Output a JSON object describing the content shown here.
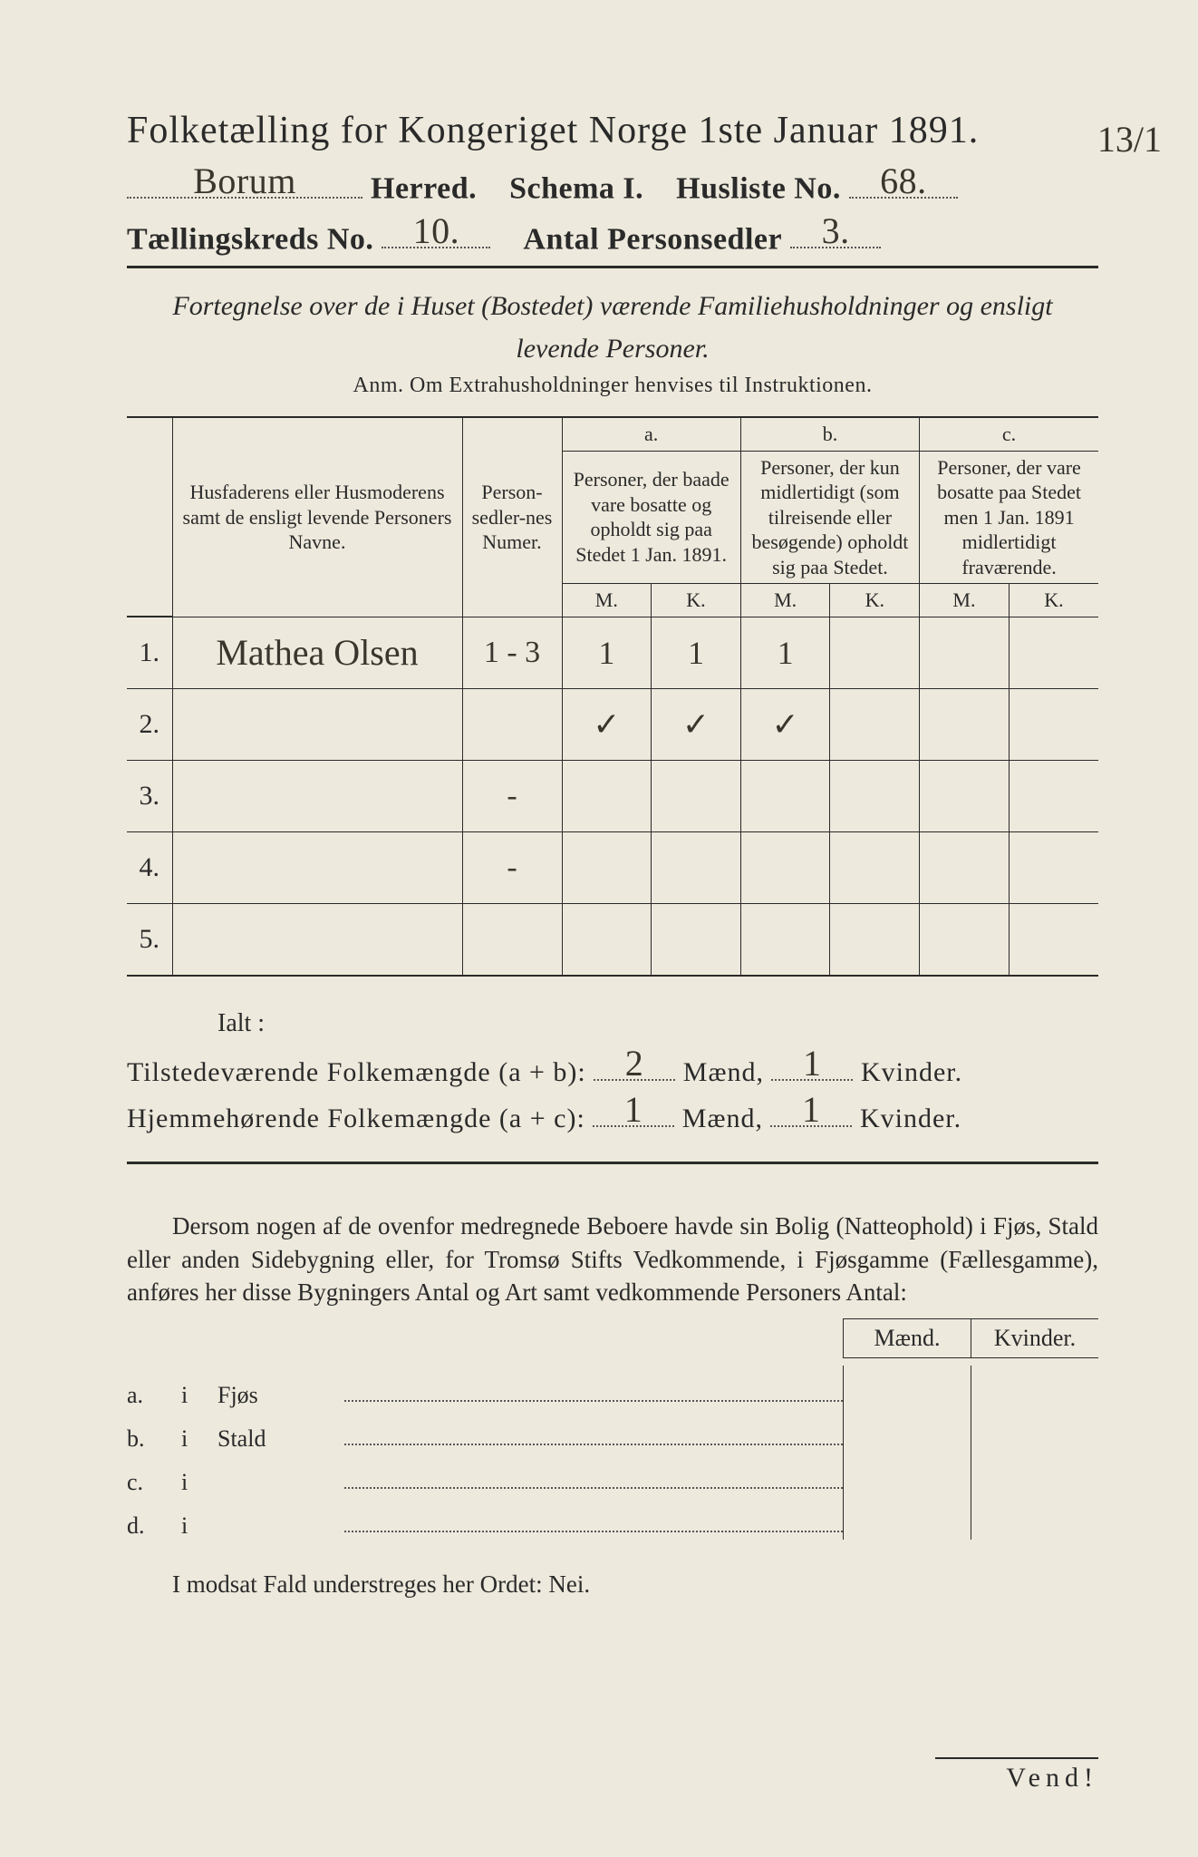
{
  "header": {
    "title": "Folketælling for Kongeriget Norge 1ste Januar 1891.",
    "herred_value": "Borum",
    "herred_label": "Herred.",
    "schema_label": "Schema I.",
    "husliste_label": "Husliste No.",
    "husliste_value": "68.",
    "kreds_label": "Tællingskreds No.",
    "kreds_value": "10.",
    "antal_label": "Antal Personsedler",
    "antal_value": "3.",
    "margin_note": "13/1"
  },
  "description": {
    "line1": "Fortegnelse over de i Huset (Bostedet) værende Familiehusholdninger og ensligt",
    "line2": "levende Personer.",
    "anm": "Anm.  Om Extrahusholdninger henvises til Instruktionen."
  },
  "table": {
    "col_name": "Husfaderens eller Husmoderens samt de ensligt levende Personers Navne.",
    "col_ps": "Person-sedler-nes Numer.",
    "col_a_label": "a.",
    "col_a_text": "Personer, der baade vare bosatte og opholdt sig paa Stedet 1 Jan. 1891.",
    "col_b_label": "b.",
    "col_b_text": "Personer, der kun midlertidigt (som tilreisende eller besøgende) opholdt sig paa Stedet.",
    "col_c_label": "c.",
    "col_c_text": "Personer, der vare bosatte paa Stedet men 1 Jan. 1891 midlertidigt fraværende.",
    "M": "M.",
    "K": "K.",
    "rows": [
      {
        "n": "1.",
        "name": "Mathea Olsen",
        "ps": "1 - 3",
        "aM": "1",
        "aK": "1",
        "bM": "1",
        "bK": "",
        "cM": "",
        "cK": ""
      },
      {
        "n": "2.",
        "name": "",
        "ps": "",
        "aM": "✓",
        "aK": "✓",
        "bM": "✓",
        "bK": "",
        "cM": "",
        "cK": ""
      },
      {
        "n": "3.",
        "name": "",
        "ps": "-",
        "aM": "",
        "aK": "",
        "bM": "",
        "bK": "",
        "cM": "",
        "cK": ""
      },
      {
        "n": "4.",
        "name": "",
        "ps": "-",
        "aM": "",
        "aK": "",
        "bM": "",
        "bK": "",
        "cM": "",
        "cK": ""
      },
      {
        "n": "5.",
        "name": "",
        "ps": "",
        "aM": "",
        "aK": "",
        "bM": "",
        "bK": "",
        "cM": "",
        "cK": ""
      }
    ]
  },
  "totals": {
    "ialt": "Ialt :",
    "t_line_label": "Tilstedeværende Folkemængde (a + b):",
    "h_line_label": "Hjemmehørende Folkemængde (a + c):",
    "maend": "Mænd,",
    "kvinder": "Kvinder.",
    "t_m": "2",
    "t_k": "1",
    "h_m": "1",
    "h_k": "1"
  },
  "paragraph": "Dersom nogen af de ovenfor medregnede Beboere havde sin Bolig (Natteophold) i Fjøs, Stald eller anden Sidebygning eller, for Tromsø Stifts Vedkommende, i Fjøsgamme (Fællesgamme), anføres her disse Bygningers Antal og Art samt vedkommende Personers Antal:",
  "lower": {
    "maend": "Mænd.",
    "kvinder": "Kvinder.",
    "rows": [
      {
        "l": "a.",
        "i": "i",
        "t": "Fjøs"
      },
      {
        "l": "b.",
        "i": "i",
        "t": "Stald"
      },
      {
        "l": "c.",
        "i": "i",
        "t": ""
      },
      {
        "l": "d.",
        "i": "i",
        "t": ""
      }
    ]
  },
  "nei": "I modsat Fald understreges her Ordet: Nei.",
  "vend": "Vend!"
}
